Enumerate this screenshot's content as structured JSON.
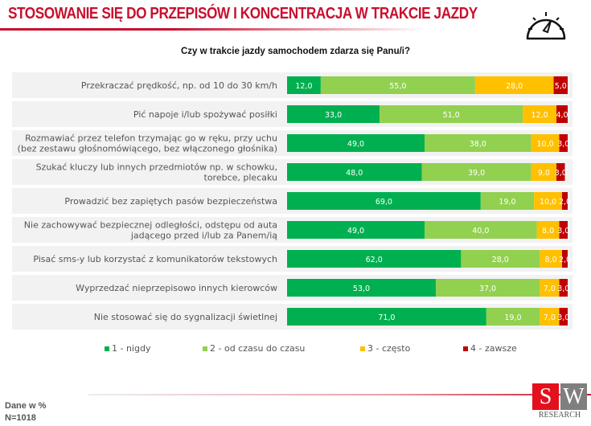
{
  "header": {
    "title": "STOSOWANIE SIĘ DO PRZEPISÓW I KONCENTRACJA W TRAKCIE JAZDY",
    "icon": "speedometer-icon"
  },
  "chart_data": {
    "type": "bar",
    "stacked": true,
    "orientation": "horizontal",
    "title": "Czy w trakcie jazdy samochodem zdarza się Panu/i?",
    "xlim": [
      0,
      100
    ],
    "legend_position": "bottom",
    "categories": [
      "Przekraczać prędkość, np. od 10 do 30 km/h",
      "Pić napoje i/lub spożywać posiłki",
      "Rozmawiać przez telefon trzymając go w ręku, przy uchu\n(bez zestawu głośnomówiącego, bez włączonego głośnika)",
      "Szukać kluczy lub innych przedmiotów np. w schowku,\ntorebce, plecaku",
      "Prowadzić bez zapiętych pasów bezpieczeństwa",
      "Nie zachowywać bezpiecznej odległości, odstępu od auta\njadącego przed i/lub za Panem/ią",
      "Pisać sms-y lub korzystać z komunikatorów tekstowych",
      "Wyprzedzać nieprzepisowo innych kierowców",
      "Nie stosować się do sygnalizacji świetlnej"
    ],
    "series": [
      {
        "name": "1 - nigdy",
        "color": "#00b050",
        "values": [
          12,
          33,
          49,
          48,
          69,
          49,
          62,
          53,
          71
        ]
      },
      {
        "name": "2 - od czasu do czasu",
        "color": "#92d050",
        "values": [
          55,
          51,
          38,
          39,
          19,
          40,
          28,
          37,
          19
        ]
      },
      {
        "name": "3 - często",
        "color": "#ffc000",
        "values": [
          28,
          12,
          10,
          9,
          10,
          8,
          8,
          7,
          7
        ]
      },
      {
        "name": "4 -  zawsze",
        "color": "#c00000",
        "values": [
          5,
          4,
          3,
          3,
          2,
          3,
          2,
          3,
          3
        ]
      }
    ]
  },
  "footer": {
    "note1": "Dane w %",
    "note2": "N=1018",
    "logo_s": "S",
    "logo_w": "W",
    "logo_research": "RESEARCH"
  }
}
